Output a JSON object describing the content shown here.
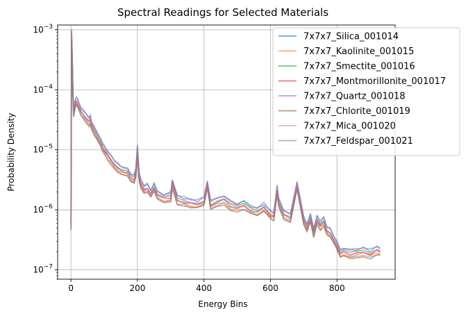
{
  "chart_data": {
    "type": "line",
    "title": "Spectral Readings for Selected Materials",
    "xlabel": "Energy Bins",
    "ylabel": "Probability Density",
    "xlim": [
      -40,
      975
    ],
    "ylim": [
      7e-08,
      0.0012
    ],
    "yscale": "log",
    "grid": true,
    "legend_position": "top-right",
    "x_ticks": [
      {
        "value": 0,
        "label": "0"
      },
      {
        "value": 200,
        "label": "200"
      },
      {
        "value": 400,
        "label": "400"
      },
      {
        "value": 600,
        "label": "600"
      },
      {
        "value": 800,
        "label": "800"
      }
    ],
    "y_ticks": [
      {
        "value": 1e-07,
        "base": "10",
        "exp": "−7"
      },
      {
        "value": 1e-06,
        "base": "10",
        "exp": "−6"
      },
      {
        "value": 1e-05,
        "base": "10",
        "exp": "−5"
      },
      {
        "value": 0.0001,
        "base": "10",
        "exp": "−4"
      },
      {
        "value": 0.001,
        "base": "10",
        "exp": "−3"
      }
    ],
    "x": [
      0,
      2,
      4,
      6,
      8,
      12,
      16,
      20,
      30,
      40,
      50,
      55,
      58,
      62,
      70,
      80,
      90,
      95,
      100,
      110,
      120,
      130,
      140,
      150,
      160,
      170,
      180,
      190,
      195,
      200,
      205,
      210,
      220,
      230,
      240,
      250,
      260,
      280,
      300,
      305,
      320,
      340,
      360,
      380,
      400,
      410,
      420,
      440,
      460,
      480,
      500,
      520,
      540,
      560,
      580,
      600,
      610,
      620,
      625,
      640,
      660,
      680,
      700,
      710,
      720,
      730,
      740,
      750,
      760,
      770,
      780,
      790,
      800,
      810,
      820,
      840,
      860,
      880,
      900,
      920,
      930
    ],
    "base_profile": [
      6e-07,
      0.0009,
      0.00035,
      0.0001,
      4.5e-05,
      6e-05,
      7e-05,
      6.5e-05,
      4.8e-05,
      4e-05,
      3.5e-05,
      3.2e-05,
      3.5e-05,
      2.8e-05,
      2.2e-05,
      1.8e-05,
      1.4e-05,
      1.2e-05,
      1.1e-05,
      9e-06,
      7.5e-06,
      6.5e-06,
      5.5e-06,
      5e-06,
      4.8e-06,
      4.5e-06,
      3.8e-06,
      3.5e-06,
      4.5e-06,
      1.1e-05,
      4e-06,
      3e-06,
      2.4e-06,
      2.5e-06,
      2e-06,
      2.6e-06,
      1.9e-06,
      1.7e-06,
      1.8e-06,
      3e-06,
      1.6e-06,
      1.5e-06,
      1.4e-06,
      1.35e-06,
      1.5e-06,
      2.9e-06,
      1.3e-06,
      1.5e-06,
      1.6e-06,
      1.3e-06,
      1.2e-06,
      1.3e-06,
      1.1e-06,
      1e-06,
      1.2e-06,
      9e-07,
      8.5e-07,
      2.3e-06,
      1.5e-06,
      9e-07,
      8e-07,
      2.8e-06,
      7e-07,
      5.5e-07,
      8e-07,
      4.5e-07,
      7.5e-07,
      6e-07,
      7e-07,
      5e-07,
      4.5e-07,
      3.5e-07,
      2.8e-07,
      2e-07,
      2.2e-07,
      2e-07,
      2.1e-07,
      2.2e-07,
      2e-07,
      2.3e-07,
      2.2e-07
    ],
    "series": [
      {
        "name": "7x7x7_Silica_001014",
        "color": "#1f77b4",
        "scale": 1.05
      },
      {
        "name": "7x7x7_Kaolinite_001015",
        "color": "#ff7f0e",
        "scale": 0.85
      },
      {
        "name": "7x7x7_Smectite_001016",
        "color": "#2ca02c",
        "scale": 0.95
      },
      {
        "name": "7x7x7_Montmorillonite_001017",
        "color": "#d62728",
        "scale": 0.9
      },
      {
        "name": "7x7x7_Quartz_001018",
        "color": "#9467bd",
        "scale": 1.08
      },
      {
        "name": "7x7x7_Chlorite_001019",
        "color": "#8c564b",
        "scale": 0.78
      },
      {
        "name": "7x7x7_Mica_001020",
        "color": "#e377c2",
        "scale": 0.92
      },
      {
        "name": "7x7x7_Feldspar_001021",
        "color": "#7f7f7f",
        "scale": 0.8
      }
    ]
  }
}
